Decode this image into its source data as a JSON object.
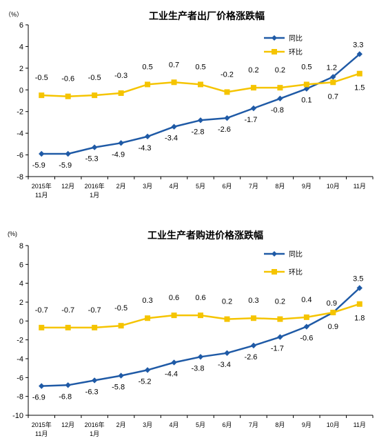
{
  "colors": {
    "series_yoy": "#1F5AA6",
    "series_mom": "#F5C400"
  },
  "chart_data": [
    {
      "type": "line",
      "title": "工业生产者出厂价格涨跌幅",
      "unit_label": "（%）",
      "ylim": [
        -8,
        6
      ],
      "yticks": [
        6,
        4,
        2,
        0,
        -2,
        -4,
        -6,
        -8
      ],
      "ytick_labels": [
        "6",
        "4",
        "2",
        "0",
        "-2",
        "-4",
        "-6",
        "-8"
      ],
      "categories": [
        "2015年11月",
        "12月",
        "2016年1月",
        "2月",
        "3月",
        "4月",
        "5月",
        "6月",
        "7月",
        "8月",
        "9月",
        "10月",
        "11月"
      ],
      "category_lines": [
        [
          "2015年",
          "11月"
        ],
        [
          "12月"
        ],
        [
          "2016年",
          "1月"
        ],
        [
          "2月"
        ],
        [
          "3月"
        ],
        [
          "4月"
        ],
        [
          "5月"
        ],
        [
          "6月"
        ],
        [
          "7月"
        ],
        [
          "8月"
        ],
        [
          "9月"
        ],
        [
          "10月"
        ],
        [
          "11月"
        ]
      ],
      "legend_position": "top-right",
      "series": [
        {
          "name": "同比",
          "values": [
            -5.9,
            -5.9,
            -5.3,
            -4.9,
            -4.3,
            -3.4,
            -2.8,
            -2.6,
            -1.7,
            -0.8,
            0.1,
            1.2,
            3.3
          ],
          "labels": [
            "-5.9",
            "-5.9",
            "-5.3",
            "-4.9",
            "-4.3",
            "-3.4",
            "-2.8",
            "-2.6",
            "-1.7",
            "-0.8",
            "0.1",
            "1.2",
            "3.3"
          ]
        },
        {
          "name": "环比",
          "values": [
            -0.5,
            -0.6,
            -0.5,
            -0.3,
            0.5,
            0.7,
            0.5,
            -0.2,
            0.2,
            0.2,
            0.5,
            0.7,
            1.5
          ],
          "labels": [
            "-0.5",
            "-0.6",
            "-0.5",
            "-0.3",
            "0.5",
            "0.7",
            "0.5",
            "-0.2",
            "0.2",
            "0.2",
            "0.5",
            "0.7",
            "1.5"
          ]
        }
      ]
    },
    {
      "type": "line",
      "title": "工业生产者购进价格涨跌幅",
      "unit_label": "(%)",
      "ylim": [
        -10,
        8
      ],
      "yticks": [
        8,
        6,
        4,
        2,
        0,
        -2,
        -4,
        -6,
        -8,
        -10
      ],
      "ytick_labels": [
        "8",
        "6",
        "4",
        "2",
        "0",
        "-2",
        "-4",
        "-6",
        "-8",
        "-10"
      ],
      "categories": [
        "2015年11月",
        "12月",
        "2016年1月",
        "2月",
        "3月",
        "4月",
        "5月",
        "6月",
        "7月",
        "8月",
        "9月",
        "10月",
        "11月"
      ],
      "category_lines": [
        [
          "2015年",
          "11月"
        ],
        [
          "12月"
        ],
        [
          "2016年",
          "1月"
        ],
        [
          "2月"
        ],
        [
          "3月"
        ],
        [
          "4月"
        ],
        [
          "5月"
        ],
        [
          "6月"
        ],
        [
          "7月"
        ],
        [
          "8月"
        ],
        [
          "9月"
        ],
        [
          "10月"
        ],
        [
          "11月"
        ]
      ],
      "legend_position": "top-right",
      "series": [
        {
          "name": "同比",
          "values": [
            -6.9,
            -6.8,
            -6.3,
            -5.8,
            -5.2,
            -4.4,
            -3.8,
            -3.4,
            -2.6,
            -1.7,
            -0.6,
            0.9,
            3.5
          ],
          "labels": [
            "-6.9",
            "-6.8",
            "-6.3",
            "-5.8",
            "-5.2",
            "-4.4",
            "-3.8",
            "-3.4",
            "-2.6",
            "-1.7",
            "-0.6",
            "0.9",
            "3.5"
          ]
        },
        {
          "name": "环比",
          "values": [
            -0.7,
            -0.7,
            -0.7,
            -0.5,
            0.3,
            0.6,
            0.6,
            0.2,
            0.3,
            0.2,
            0.4,
            0.9,
            1.8
          ],
          "labels": [
            "-0.7",
            "-0.7",
            "-0.7",
            "-0.5",
            "0.3",
            "0.6",
            "0.6",
            "0.2",
            "0.3",
            "0.2",
            "0.4",
            "0.9",
            "1.8"
          ]
        }
      ]
    }
  ]
}
